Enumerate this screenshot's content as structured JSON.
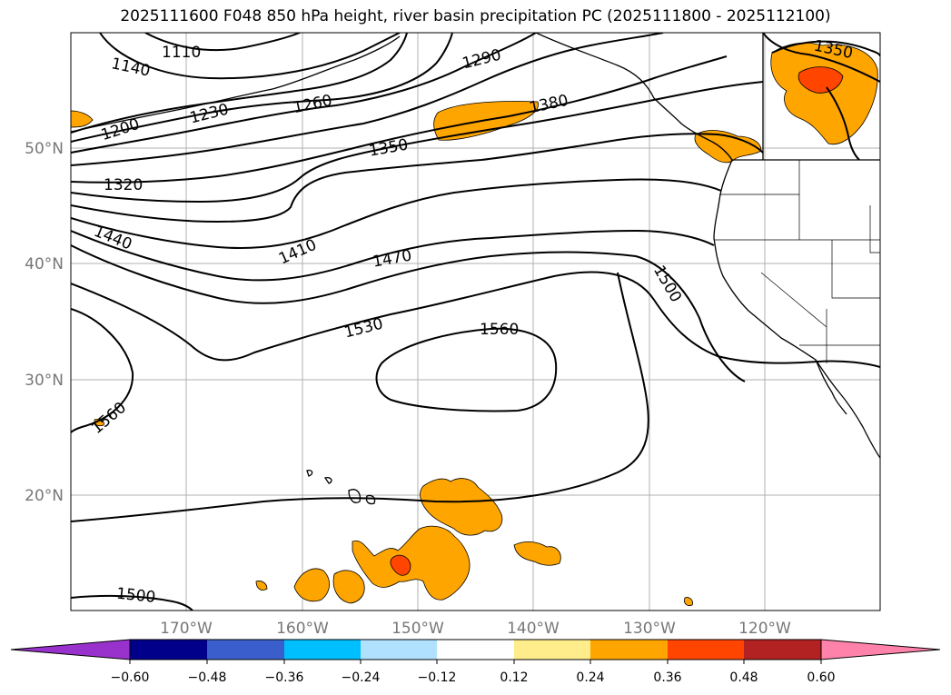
{
  "title": "2025111600 F048 850 hPa height, river basin precipitation PC (2025111800 - 2025112100)",
  "map": {
    "lon_labels": [
      "170°W",
      "160°W",
      "150°W",
      "140°W",
      "130°W",
      "120°W"
    ],
    "lat_labels": [
      "50°N",
      "40°N",
      "30°N",
      "20°N"
    ],
    "contour_labels": [
      "1110",
      "1140",
      "1200",
      "1230",
      "1260",
      "1290",
      "1320",
      "1350",
      "1380",
      "1350",
      "1410",
      "1440",
      "1470",
      "1500",
      "1530",
      "1560",
      "1560",
      "1500"
    ]
  },
  "colorbar": {
    "ticks": [
      "−0.60",
      "−0.48",
      "−0.36",
      "−0.24",
      "−0.12",
      "0.12",
      "0.24",
      "0.36",
      "0.48",
      "0.60"
    ],
    "colors": [
      "#9932cc",
      "#00008b",
      "#3a5fcd",
      "#00bfff",
      "#b0e2ff",
      "#ffffff",
      "#ffec8b",
      "#ffa500",
      "#ff4500",
      "#b22222",
      "#ff82ab"
    ]
  }
}
